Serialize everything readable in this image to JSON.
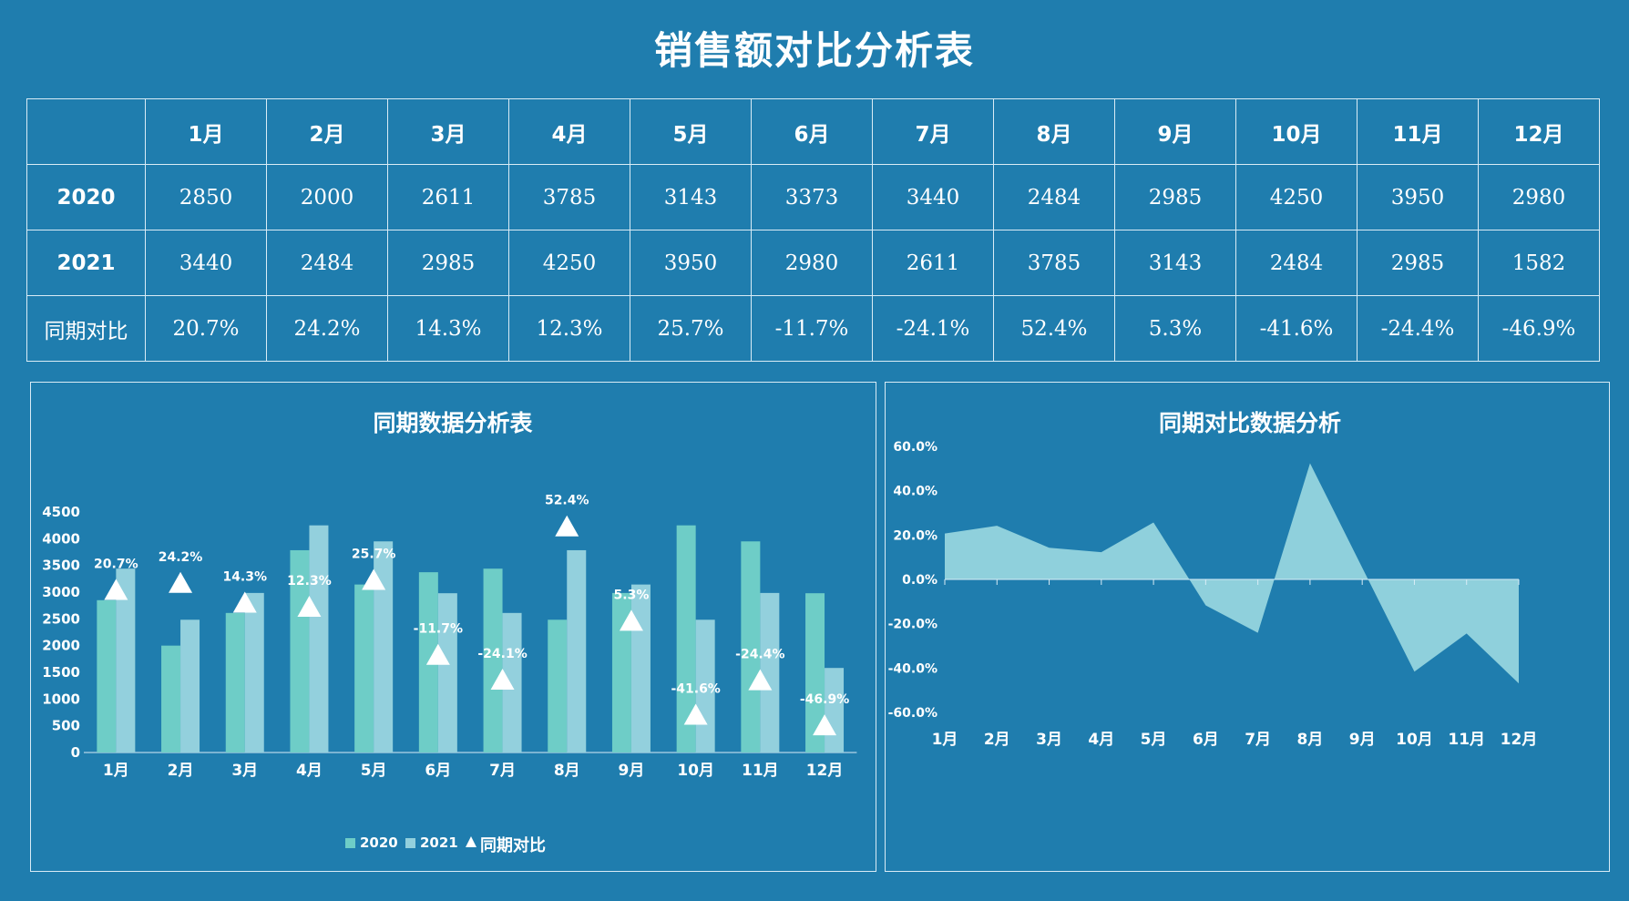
{
  "title": "销售额对比分析表",
  "table": {
    "months": [
      "1月",
      "2月",
      "3月",
      "4月",
      "5月",
      "6月",
      "7月",
      "8月",
      "9月",
      "10月",
      "11月",
      "12月"
    ],
    "rows": [
      {
        "label": "2020",
        "values": [
          "2850",
          "2000",
          "2611",
          "3785",
          "3143",
          "3373",
          "3440",
          "2484",
          "2985",
          "4250",
          "3950",
          "2980"
        ]
      },
      {
        "label": "2021",
        "values": [
          "3440",
          "2484",
          "2985",
          "4250",
          "3950",
          "2980",
          "2611",
          "3785",
          "3143",
          "2484",
          "2985",
          "1582"
        ]
      },
      {
        "label": "同期对比",
        "values": [
          "20.7%",
          "24.2%",
          "14.3%",
          "12.3%",
          "25.7%",
          "-11.7%",
          "-24.1%",
          "52.4%",
          "5.3%",
          "-41.6%",
          "-24.4%",
          "-46.9%"
        ]
      }
    ]
  },
  "chart_data": [
    {
      "type": "bar",
      "title": "同期数据分析表",
      "categories": [
        "1月",
        "2月",
        "3月",
        "4月",
        "5月",
        "6月",
        "7月",
        "8月",
        "9月",
        "10月",
        "11月",
        "12月"
      ],
      "series": [
        {
          "name": "2020",
          "values": [
            2850,
            2000,
            2611,
            3785,
            3143,
            3373,
            3440,
            2484,
            2985,
            4250,
            3950,
            2980
          ],
          "color": "#6ecdc7"
        },
        {
          "name": "2021",
          "values": [
            3440,
            2484,
            2985,
            4250,
            3950,
            2980,
            2611,
            3785,
            3143,
            2484,
            2985,
            1582
          ],
          "color": "#93d0dd"
        }
      ],
      "markers": {
        "name": "同期对比",
        "symbol": "triangle",
        "values": [
          20.7,
          24.2,
          14.3,
          12.3,
          25.7,
          -11.7,
          -24.1,
          52.4,
          5.3,
          -41.6,
          -24.4,
          -46.9
        ],
        "labels": [
          "20.7%",
          "24.2%",
          "14.3%",
          "12.3%",
          "25.7%",
          "-11.7%",
          "-24.1%",
          "52.4%",
          "5.3%",
          "-41.6%",
          "-24.4%",
          "-46.9%"
        ]
      },
      "ylim": [
        0,
        4500
      ],
      "yticks": [
        "0",
        "500",
        "1000",
        "1500",
        "2000",
        "2500",
        "3000",
        "3500",
        "4000",
        "4500"
      ],
      "legend_position": "bottom",
      "grid": false
    },
    {
      "type": "area",
      "title": "同期对比数据分析",
      "categories": [
        "1月",
        "2月",
        "3月",
        "4月",
        "5月",
        "6月",
        "7月",
        "8月",
        "9月",
        "10月",
        "11月",
        "12月"
      ],
      "values": [
        20.7,
        24.2,
        14.3,
        12.3,
        25.7,
        -11.7,
        -24.1,
        52.4,
        5.3,
        -41.6,
        -24.4,
        -46.9
      ],
      "color": "#8fd0dc",
      "ylim": [
        -60,
        60
      ],
      "yticks": [
        "-60.0%",
        "-40.0%",
        "-20.0%",
        "0.0%",
        "20.0%",
        "40.0%",
        "60.0%"
      ],
      "grid": false
    }
  ]
}
